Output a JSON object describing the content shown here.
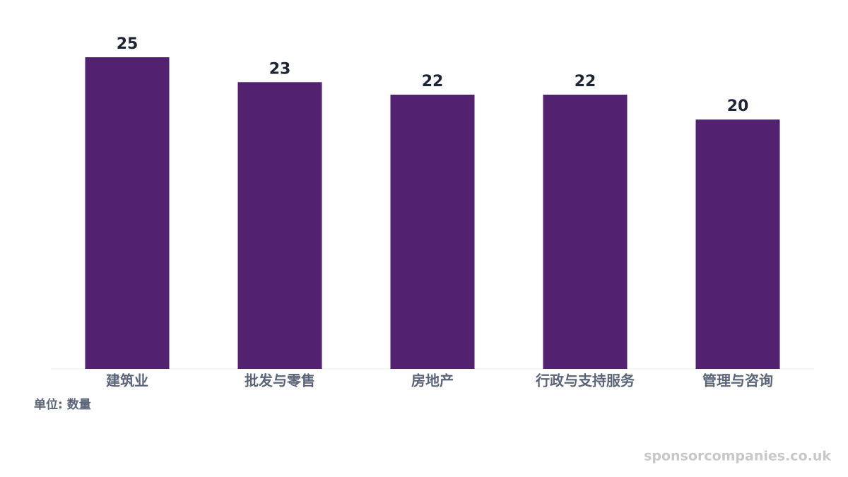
{
  "chart_data": {
    "type": "bar",
    "categories": [
      "建筑业",
      "批发与零售",
      "房地产",
      "行政与支持服务",
      "管理与咨询"
    ],
    "values": [
      25,
      23,
      22,
      22,
      20
    ],
    "color": "#52216f",
    "unit_label": "单位: 数量"
  },
  "watermark": "sponsorcompanies.co.uk"
}
